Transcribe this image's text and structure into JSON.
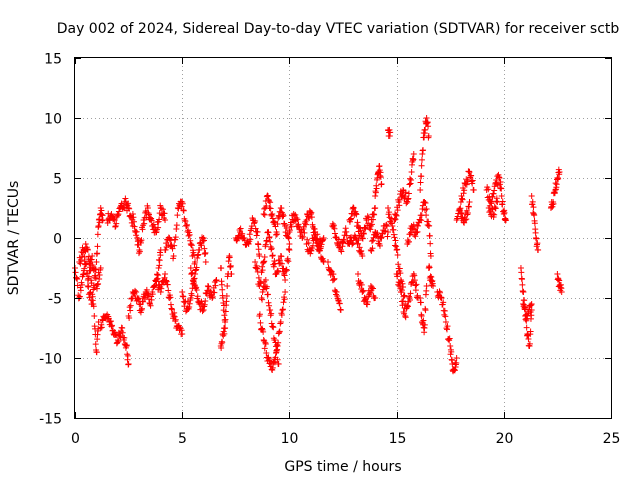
{
  "chart_data": {
    "type": "scatter",
    "title": "Day 002 of 2024, Sidereal Day-to-day VTEC variation (SDTVAR) for receiver sctb",
    "xlabel": "GPS time / hours",
    "ylabel": "SDTVAR / TECUs",
    "xlim": [
      0,
      25
    ],
    "ylim": [
      -15,
      15
    ],
    "xticks": [
      0,
      5,
      10,
      15,
      20,
      25
    ],
    "yticks": [
      -15,
      -10,
      -5,
      0,
      5,
      10,
      15
    ],
    "xtick_labels": [
      "0",
      "5",
      "10",
      "15",
      "20",
      "25"
    ],
    "ytick_labels": [
      "-15",
      "-10",
      "-5",
      "0",
      "5",
      "10",
      "15"
    ],
    "grid": true,
    "marker": "+",
    "marker_color": "#ff0000",
    "series": [
      {
        "name": "SDTVAR",
        "tracks": [
          [
            [
              0.0,
              -2.5
            ],
            [
              0.2,
              -5.0
            ],
            [
              0.4,
              -3.0
            ],
            [
              0.5,
              -0.5
            ],
            [
              0.7,
              -2.0
            ],
            [
              0.9,
              -6.5
            ],
            [
              1.0,
              -9.5
            ],
            [
              1.1,
              -7.0
            ]
          ],
          [
            [
              0.2,
              -2.0
            ],
            [
              0.4,
              -1.0
            ],
            [
              0.6,
              -3.5
            ],
            [
              0.8,
              -1.5
            ],
            [
              1.0,
              -4.0
            ],
            [
              1.2,
              -2.5
            ]
          ],
          [
            [
              0.6,
              -4.0
            ],
            [
              0.8,
              -5.5
            ],
            [
              1.0,
              -2.0
            ],
            [
              1.1,
              1.0
            ],
            [
              1.2,
              2.5
            ],
            [
              1.3,
              1.5
            ]
          ],
          [
            [
              1.2,
              -7.5
            ],
            [
              1.4,
              -6.5
            ],
            [
              1.6,
              -7.0
            ],
            [
              1.8,
              -8.0
            ],
            [
              2.0,
              -8.5
            ],
            [
              2.2,
              -7.5
            ],
            [
              2.4,
              -9.0
            ],
            [
              2.5,
              -10.5
            ]
          ],
          [
            [
              1.5,
              1.5
            ],
            [
              1.7,
              2.0
            ],
            [
              1.9,
              1.0
            ],
            [
              2.1,
              2.5
            ],
            [
              2.3,
              3.0
            ],
            [
              2.5,
              2.5
            ],
            [
              2.7,
              1.0
            ]
          ],
          [
            [
              2.5,
              -6.5
            ],
            [
              2.7,
              -4.5
            ],
            [
              2.9,
              -5.0
            ],
            [
              3.1,
              -6.0
            ],
            [
              3.3,
              -4.5
            ],
            [
              3.5,
              -5.5
            ],
            [
              3.7,
              -4.0
            ],
            [
              3.9,
              -2.5
            ],
            [
              4.0,
              -1.0
            ]
          ],
          [
            [
              2.7,
              2.0
            ],
            [
              2.9,
              0.0
            ],
            [
              3.0,
              -1.0
            ],
            [
              3.2,
              1.5
            ],
            [
              3.4,
              2.5
            ],
            [
              3.6,
              1.0
            ],
            [
              3.8,
              0.5
            ],
            [
              4.0,
              2.5
            ],
            [
              4.2,
              1.5
            ]
          ],
          [
            [
              3.8,
              -3.5
            ],
            [
              4.0,
              -4.5
            ],
            [
              4.2,
              -3.0
            ],
            [
              4.4,
              -5.0
            ],
            [
              4.6,
              -6.5
            ],
            [
              4.8,
              -7.5
            ],
            [
              5.0,
              -8.0
            ]
          ],
          [
            [
              4.2,
              -1.0
            ],
            [
              4.4,
              0.0
            ],
            [
              4.6,
              -1.5
            ],
            [
              4.8,
              2.5
            ],
            [
              5.0,
              3.0
            ],
            [
              5.2,
              1.0
            ],
            [
              5.4,
              -0.5
            ],
            [
              5.6,
              -2.0
            ]
          ],
          [
            [
              5.0,
              -4.5
            ],
            [
              5.2,
              -6.0
            ],
            [
              5.4,
              -5.0
            ],
            [
              5.6,
              -3.0
            ],
            [
              5.8,
              -1.0
            ],
            [
              6.0,
              0.0
            ],
            [
              6.1,
              -2.0
            ]
          ],
          [
            [
              5.4,
              -2.5
            ],
            [
              5.6,
              -4.0
            ],
            [
              5.8,
              -5.5
            ],
            [
              6.0,
              -6.0
            ],
            [
              6.2,
              -4.0
            ],
            [
              6.4,
              -5.0
            ],
            [
              6.6,
              -3.5
            ]
          ],
          [
            [
              6.8,
              -2.5
            ],
            [
              6.9,
              -5.0
            ],
            [
              7.0,
              -7.0
            ],
            [
              7.1,
              -4.0
            ],
            [
              7.2,
              -1.5
            ],
            [
              7.3,
              -3.0
            ]
          ],
          [
            [
              6.8,
              -9.0
            ],
            [
              6.9,
              -8.0
            ],
            [
              7.0,
              -7.5
            ]
          ],
          [
            [
              7.5,
              0.0
            ],
            [
              7.7,
              0.5
            ],
            [
              7.9,
              0.0
            ],
            [
              8.1,
              -0.5
            ],
            [
              8.3,
              1.5
            ],
            [
              8.5,
              0.5
            ],
            [
              8.6,
              -1.5
            ]
          ],
          [
            [
              8.4,
              -2.0
            ],
            [
              8.6,
              -4.0
            ],
            [
              8.8,
              -2.0
            ],
            [
              9.0,
              0.5
            ],
            [
              9.2,
              -1.5
            ],
            [
              9.4,
              -3.0
            ],
            [
              9.6,
              -1.5
            ],
            [
              9.8,
              -3.5
            ],
            [
              10.0,
              -1.0
            ]
          ],
          [
            [
              8.6,
              -6.5
            ],
            [
              8.8,
              -8.5
            ],
            [
              9.0,
              -10.0
            ],
            [
              9.2,
              -11.0
            ],
            [
              9.4,
              -9.5
            ],
            [
              9.6,
              -7.0
            ],
            [
              9.8,
              -4.5
            ]
          ],
          [
            [
              8.8,
              2.0
            ],
            [
              9.0,
              3.5
            ],
            [
              9.2,
              2.0
            ],
            [
              9.4,
              0.5
            ],
            [
              9.6,
              2.5
            ],
            [
              9.8,
              1.0
            ],
            [
              10.0,
              -0.5
            ]
          ],
          [
            [
              8.7,
              -5.0
            ],
            [
              8.9,
              -3.5
            ],
            [
              9.1,
              -6.0
            ],
            [
              9.3,
              -8.5
            ],
            [
              9.5,
              -10.5
            ]
          ],
          [
            [
              10.0,
              0.5
            ],
            [
              10.2,
              2.0
            ],
            [
              10.4,
              1.0
            ],
            [
              10.6,
              0.0
            ],
            [
              10.8,
              1.5
            ],
            [
              11.0,
              2.0
            ],
            [
              11.2,
              0.0
            ],
            [
              11.4,
              -1.0
            ],
            [
              11.6,
              -2.0
            ]
          ],
          [
            [
              10.8,
              -0.5
            ],
            [
              11.0,
              -1.0
            ],
            [
              11.2,
              0.5
            ],
            [
              11.4,
              -0.5
            ],
            [
              11.6,
              0.0
            ]
          ],
          [
            [
              11.8,
              -2.0
            ],
            [
              12.0,
              -3.0
            ],
            [
              12.2,
              -4.5
            ],
            [
              12.4,
              -6.0
            ]
          ],
          [
            [
              12.0,
              1.0
            ],
            [
              12.2,
              0.0
            ],
            [
              12.4,
              -1.0
            ],
            [
              12.6,
              0.5
            ],
            [
              12.8,
              -0.5
            ],
            [
              13.0,
              0.0
            ],
            [
              13.2,
              -0.5
            ],
            [
              13.4,
              -1.5
            ]
          ],
          [
            [
              12.8,
              1.5
            ],
            [
              13.0,
              2.5
            ],
            [
              13.2,
              1.0
            ],
            [
              13.4,
              0.0
            ],
            [
              13.6,
              1.5
            ],
            [
              13.8,
              1.0
            ],
            [
              14.0,
              2.5
            ]
          ],
          [
            [
              13.2,
              -3.0
            ],
            [
              13.4,
              -4.5
            ],
            [
              13.6,
              -5.5
            ],
            [
              13.8,
              -4.0
            ],
            [
              14.0,
              -5.0
            ]
          ],
          [
            [
              13.8,
              -1.0
            ],
            [
              14.0,
              0.5
            ],
            [
              14.2,
              -0.5
            ],
            [
              14.4,
              1.0
            ],
            [
              14.6,
              0.5
            ]
          ],
          [
            [
              14.0,
              3.5
            ],
            [
              14.1,
              5.0
            ],
            [
              14.2,
              6.0
            ],
            [
              14.3,
              4.5
            ]
          ],
          [
            [
              14.6,
              9.0
            ],
            [
              14.7,
              8.8
            ]
          ],
          [
            [
              14.6,
              2.5
            ],
            [
              14.8,
              1.0
            ],
            [
              15.0,
              -1.0
            ],
            [
              15.2,
              -3.5
            ],
            [
              15.4,
              -5.5
            ]
          ],
          [
            [
              14.9,
              1.5
            ],
            [
              15.1,
              3.0
            ],
            [
              15.3,
              4.0
            ],
            [
              15.5,
              3.0
            ],
            [
              15.7,
              5.5
            ],
            [
              15.8,
              7.0
            ]
          ],
          [
            [
              15.0,
              -3.0
            ],
            [
              15.2,
              -4.5
            ],
            [
              15.4,
              -6.5
            ],
            [
              15.6,
              -5.0
            ],
            [
              15.8,
              -3.0
            ],
            [
              16.0,
              -5.0
            ]
          ],
          [
            [
              15.5,
              -0.5
            ],
            [
              15.7,
              1.0
            ],
            [
              15.9,
              0.5
            ],
            [
              16.1,
              1.5
            ],
            [
              16.3,
              3.0
            ],
            [
              16.5,
              1.0
            ],
            [
              16.6,
              -1.5
            ]
          ],
          [
            [
              16.1,
              -5.0
            ],
            [
              16.2,
              -7.0
            ],
            [
              16.3,
              -7.5
            ],
            [
              16.4,
              -4.0
            ]
          ],
          [
            [
              16.1,
              4.0
            ],
            [
              16.2,
              7.0
            ],
            [
              16.3,
              9.0
            ],
            [
              16.4,
              10.0
            ],
            [
              16.5,
              8.5
            ]
          ],
          [
            [
              16.5,
              -2.5
            ],
            [
              16.6,
              -3.5
            ],
            [
              16.7,
              -4.0
            ]
          ],
          [
            [
              16.9,
              -4.5
            ],
            [
              17.1,
              -5.0
            ],
            [
              17.3,
              -7.0
            ],
            [
              17.5,
              -9.0
            ],
            [
              17.6,
              -10.5
            ],
            [
              17.7,
              -11.0
            ],
            [
              17.8,
              -10.0
            ]
          ],
          [
            [
              17.8,
              1.5
            ],
            [
              18.0,
              3.0
            ],
            [
              18.2,
              4.5
            ],
            [
              18.4,
              5.5
            ],
            [
              18.6,
              4.0
            ]
          ],
          [
            [
              18.0,
              2.0
            ],
            [
              18.2,
              1.5
            ],
            [
              18.4,
              3.0
            ]
          ],
          [
            [
              19.2,
              4.0
            ],
            [
              19.4,
              3.0
            ],
            [
              19.6,
              4.5
            ],
            [
              19.8,
              5.0
            ],
            [
              19.9,
              3.5
            ],
            [
              20.0,
              2.0
            ],
            [
              20.1,
              1.5
            ]
          ],
          [
            [
              19.3,
              2.5
            ],
            [
              19.5,
              2.0
            ],
            [
              19.7,
              3.0
            ]
          ],
          [
            [
              20.8,
              -2.5
            ],
            [
              20.9,
              -4.5
            ],
            [
              21.0,
              -6.5
            ],
            [
              21.1,
              -8.0
            ],
            [
              21.2,
              -9.0
            ],
            [
              21.3,
              -6.0
            ]
          ],
          [
            [
              20.9,
              -5.5
            ],
            [
              21.1,
              -6.5
            ],
            [
              21.3,
              -5.5
            ]
          ],
          [
            [
              21.3,
              3.5
            ],
            [
              21.4,
              2.0
            ],
            [
              21.5,
              0.0
            ],
            [
              21.6,
              -1.0
            ]
          ],
          [
            [
              22.2,
              2.5
            ],
            [
              22.3,
              3.0
            ],
            [
              22.4,
              4.0
            ],
            [
              22.5,
              5.0
            ],
            [
              22.6,
              5.5
            ]
          ],
          [
            [
              22.5,
              -3.0
            ],
            [
              22.6,
              -4.0
            ],
            [
              22.7,
              -4.5
            ]
          ]
        ]
      }
    ]
  }
}
